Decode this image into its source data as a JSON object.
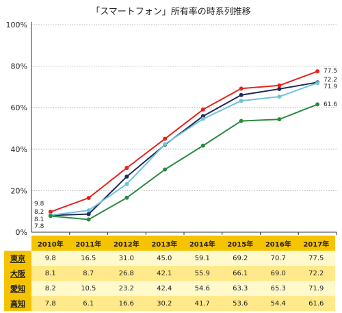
{
  "chart_data": {
    "type": "line",
    "title": "「スマートフォン」所有率の時系列推移",
    "categories": [
      "2010年",
      "2011年",
      "2012年",
      "2013年",
      "2014年",
      "2015年",
      "2016年",
      "2017年"
    ],
    "y_ticks": [
      "0%",
      "20%",
      "40%",
      "60%",
      "80%",
      "100%"
    ],
    "ylim": [
      0,
      100
    ],
    "grid": "horizontal dotted",
    "series": [
      {
        "name": "東京",
        "color": "#e8221c",
        "values": [
          9.8,
          16.5,
          31.0,
          45.0,
          59.1,
          69.2,
          70.7,
          77.5
        ]
      },
      {
        "name": "大阪",
        "color": "#1f2a5a",
        "values": [
          8.1,
          8.7,
          26.8,
          42.1,
          55.9,
          66.1,
          69.0,
          72.2
        ]
      },
      {
        "name": "愛知",
        "color": "#6ec3d8",
        "values": [
          8.2,
          10.5,
          23.2,
          42.4,
          54.6,
          63.3,
          65.3,
          71.9
        ]
      },
      {
        "name": "高知",
        "color": "#2b8a3e",
        "values": [
          7.8,
          6.1,
          16.6,
          30.2,
          41.7,
          53.6,
          54.4,
          61.6
        ]
      }
    ],
    "start_labels": [
      "9.8",
      "8.2",
      "8.1",
      "7.8"
    ],
    "end_labels": [
      "77.5",
      "72.2",
      "71.9",
      "61.6"
    ]
  },
  "table": {
    "years": [
      "2010年",
      "2011年",
      "2012年",
      "2013年",
      "2014年",
      "2015年",
      "2016年",
      "2017年"
    ],
    "rows": [
      {
        "label": "東京",
        "cells": [
          "9.8",
          "16.5",
          "31.0",
          "45.0",
          "59.1",
          "69.2",
          "70.7",
          "77.5"
        ]
      },
      {
        "label": "大阪",
        "cells": [
          "8.1",
          "8.7",
          "26.8",
          "42.1",
          "55.9",
          "66.1",
          "69.0",
          "72.2"
        ]
      },
      {
        "label": "愛知",
        "cells": [
          "8.2",
          "10.5",
          "23.2",
          "42.4",
          "54.6",
          "63.3",
          "65.3",
          "71.9"
        ]
      },
      {
        "label": "高知",
        "cells": [
          "7.8",
          "6.1",
          "16.6",
          "30.2",
          "41.7",
          "53.6",
          "54.4",
          "61.6"
        ]
      }
    ]
  }
}
